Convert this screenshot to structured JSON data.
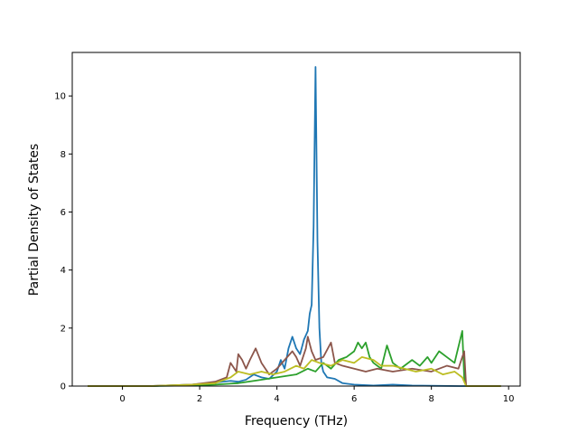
{
  "chart_data": {
    "type": "line",
    "xlabel": "Frequency (THz)",
    "ylabel": "Partial Density of States",
    "xlim": [
      -1.3,
      10.3
    ],
    "ylim": [
      0,
      11.5
    ],
    "xticks": [
      "0",
      "2",
      "4",
      "6",
      "8",
      "10"
    ],
    "yticks": [
      "0",
      "2",
      "4",
      "6",
      "8",
      "10"
    ],
    "grid": false,
    "series": [
      {
        "color": "#1f77b4",
        "points": [
          [
            -0.9,
            0
          ],
          [
            0.7,
            0
          ],
          [
            1.8,
            0.05
          ],
          [
            2.4,
            0.12
          ],
          [
            2.8,
            0.18
          ],
          [
            3.0,
            0.15
          ],
          [
            3.2,
            0.22
          ],
          [
            3.4,
            0.4
          ],
          [
            3.6,
            0.3
          ],
          [
            3.8,
            0.25
          ],
          [
            4.0,
            0.5
          ],
          [
            4.1,
            0.9
          ],
          [
            4.2,
            0.6
          ],
          [
            4.3,
            1.3
          ],
          [
            4.4,
            1.7
          ],
          [
            4.5,
            1.3
          ],
          [
            4.6,
            1.1
          ],
          [
            4.7,
            1.6
          ],
          [
            4.8,
            1.9
          ],
          [
            4.85,
            2.5
          ],
          [
            4.9,
            2.8
          ],
          [
            4.95,
            5.5
          ],
          [
            5.0,
            11.0
          ],
          [
            5.05,
            5.0
          ],
          [
            5.1,
            2.0
          ],
          [
            5.15,
            0.8
          ],
          [
            5.2,
            0.5
          ],
          [
            5.3,
            0.3
          ],
          [
            5.5,
            0.25
          ],
          [
            5.7,
            0.1
          ],
          [
            6.0,
            0.05
          ],
          [
            6.5,
            0.02
          ],
          [
            7.0,
            0.05
          ],
          [
            7.5,
            0.02
          ],
          [
            8.0,
            0.01
          ],
          [
            8.8,
            0
          ],
          [
            9.8,
            0
          ]
        ]
      },
      {
        "color": "#2ca02c",
        "points": [
          [
            -0.9,
            0
          ],
          [
            0.7,
            0
          ],
          [
            1.8,
            0.02
          ],
          [
            2.4,
            0.05
          ],
          [
            3.0,
            0.1
          ],
          [
            3.5,
            0.2
          ],
          [
            4.0,
            0.3
          ],
          [
            4.5,
            0.4
          ],
          [
            4.8,
            0.6
          ],
          [
            5.0,
            0.5
          ],
          [
            5.2,
            0.8
          ],
          [
            5.4,
            0.6
          ],
          [
            5.6,
            0.9
          ],
          [
            5.8,
            1.0
          ],
          [
            6.0,
            1.2
          ],
          [
            6.1,
            1.5
          ],
          [
            6.2,
            1.3
          ],
          [
            6.3,
            1.5
          ],
          [
            6.4,
            1.0
          ],
          [
            6.5,
            0.8
          ],
          [
            6.7,
            0.6
          ],
          [
            6.85,
            1.4
          ],
          [
            7.0,
            0.8
          ],
          [
            7.2,
            0.6
          ],
          [
            7.5,
            0.9
          ],
          [
            7.7,
            0.7
          ],
          [
            7.9,
            1.0
          ],
          [
            8.0,
            0.8
          ],
          [
            8.2,
            1.2
          ],
          [
            8.4,
            1.0
          ],
          [
            8.6,
            0.8
          ],
          [
            8.8,
            1.9
          ],
          [
            8.85,
            0.3
          ],
          [
            8.9,
            0
          ],
          [
            9.8,
            0
          ]
        ]
      },
      {
        "color": "#8c564b",
        "points": [
          [
            -0.9,
            0
          ],
          [
            0.7,
            0
          ],
          [
            1.8,
            0.05
          ],
          [
            2.4,
            0.15
          ],
          [
            2.7,
            0.3
          ],
          [
            2.8,
            0.8
          ],
          [
            2.95,
            0.5
          ],
          [
            3.0,
            1.1
          ],
          [
            3.1,
            0.9
          ],
          [
            3.2,
            0.6
          ],
          [
            3.3,
            0.9
          ],
          [
            3.45,
            1.3
          ],
          [
            3.6,
            0.8
          ],
          [
            3.8,
            0.4
          ],
          [
            4.0,
            0.6
          ],
          [
            4.2,
            0.9
          ],
          [
            4.4,
            1.2
          ],
          [
            4.5,
            1.0
          ],
          [
            4.6,
            0.7
          ],
          [
            4.75,
            1.3
          ],
          [
            4.8,
            1.7
          ],
          [
            4.9,
            1.2
          ],
          [
            5.0,
            0.9
          ],
          [
            5.2,
            1.0
          ],
          [
            5.4,
            1.5
          ],
          [
            5.5,
            0.8
          ],
          [
            5.7,
            0.7
          ],
          [
            6.0,
            0.6
          ],
          [
            6.3,
            0.5
          ],
          [
            6.6,
            0.6
          ],
          [
            7.0,
            0.5
          ],
          [
            7.5,
            0.6
          ],
          [
            8.0,
            0.5
          ],
          [
            8.4,
            0.7
          ],
          [
            8.7,
            0.6
          ],
          [
            8.85,
            1.2
          ],
          [
            8.9,
            0
          ],
          [
            9.8,
            0
          ]
        ]
      },
      {
        "color": "#bcbd22",
        "points": [
          [
            -0.9,
            0
          ],
          [
            0.7,
            0
          ],
          [
            1.8,
            0.05
          ],
          [
            2.4,
            0.1
          ],
          [
            2.8,
            0.3
          ],
          [
            3.0,
            0.5
          ],
          [
            3.3,
            0.4
          ],
          [
            3.6,
            0.5
          ],
          [
            3.9,
            0.4
          ],
          [
            4.2,
            0.5
          ],
          [
            4.5,
            0.7
          ],
          [
            4.7,
            0.6
          ],
          [
            4.9,
            0.9
          ],
          [
            5.1,
            0.8
          ],
          [
            5.4,
            0.7
          ],
          [
            5.7,
            0.9
          ],
          [
            6.0,
            0.8
          ],
          [
            6.2,
            1.0
          ],
          [
            6.5,
            0.9
          ],
          [
            6.7,
            0.7
          ],
          [
            7.0,
            0.7
          ],
          [
            7.3,
            0.6
          ],
          [
            7.6,
            0.5
          ],
          [
            8.0,
            0.6
          ],
          [
            8.3,
            0.4
          ],
          [
            8.6,
            0.5
          ],
          [
            8.8,
            0.3
          ],
          [
            8.9,
            0
          ],
          [
            9.8,
            0
          ]
        ]
      }
    ]
  }
}
